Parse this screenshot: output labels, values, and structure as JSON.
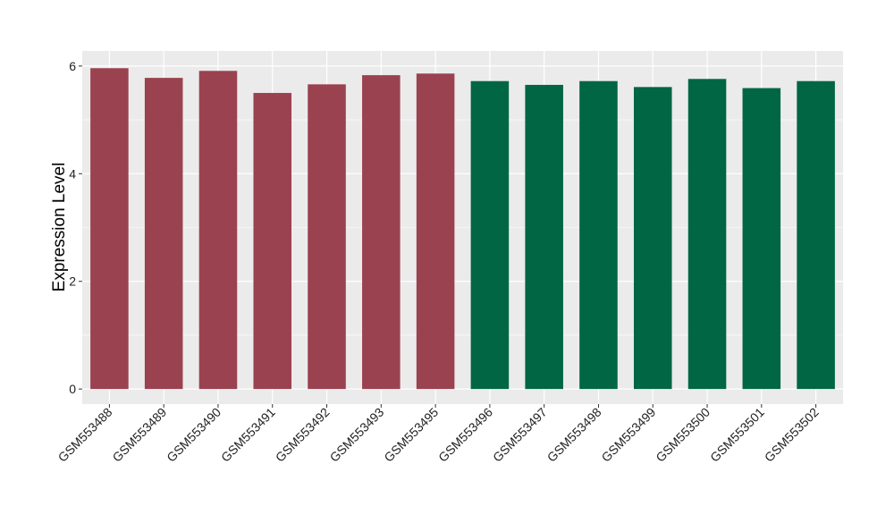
{
  "chart_data": {
    "type": "bar",
    "title": "",
    "xlabel": "",
    "ylabel": "Expression Level",
    "ylim": [
      -0.28,
      6.28
    ],
    "yticks": [
      0,
      2,
      4,
      6
    ],
    "grid": true,
    "legend": "none",
    "categories": [
      "GSM553488",
      "GSM553489",
      "GSM553490",
      "GSM553491",
      "GSM553492",
      "GSM553493",
      "GSM553495",
      "GSM553496",
      "GSM553497",
      "GSM553498",
      "GSM553499",
      "GSM553500",
      "GSM553501",
      "GSM553502"
    ],
    "values": [
      5.96,
      5.78,
      5.91,
      5.5,
      5.66,
      5.83,
      5.86,
      5.72,
      5.65,
      5.72,
      5.61,
      5.76,
      5.59,
      5.72
    ],
    "groups": [
      0,
      0,
      0,
      0,
      0,
      0,
      0,
      1,
      1,
      1,
      1,
      1,
      1,
      1
    ],
    "group_colors": [
      "#9a4250",
      "#006644"
    ],
    "panel_background": "#ebebeb",
    "gridline_color": "#ffffff"
  }
}
